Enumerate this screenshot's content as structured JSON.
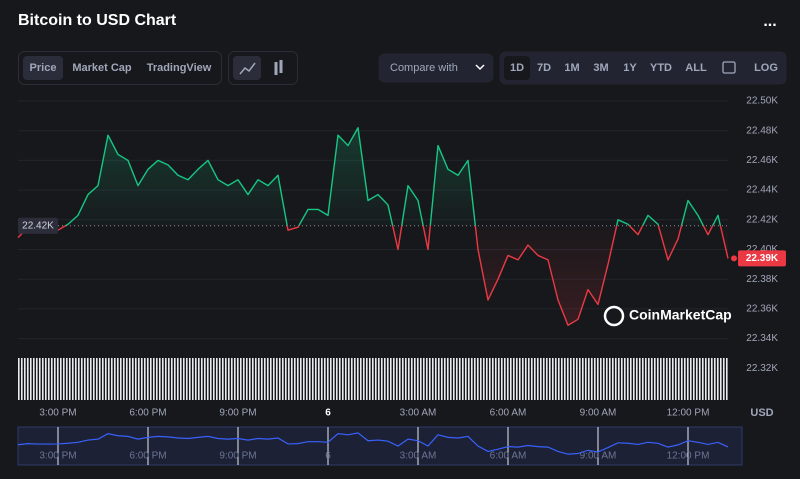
{
  "ui": {
    "title": "Bitcoin to USD Chart",
    "menu": "...",
    "tabs": [
      "Price",
      "Market Cap",
      "TradingView"
    ],
    "compare": "Compare with",
    "ranges": [
      "1D",
      "7D",
      "1M",
      "3M",
      "1Y",
      "YTD",
      "ALL"
    ],
    "log": "LOG",
    "currency": "USD",
    "watermark": "CoinMarketCap"
  },
  "chart_data": {
    "type": "line",
    "categories": [
      null,
      null,
      null,
      null,
      "3:00 PM",
      null,
      null,
      null,
      null,
      null,
      null,
      null,
      null,
      "6:00 PM",
      null,
      null,
      null,
      null,
      null,
      null,
      null,
      null,
      "9:00 PM",
      null,
      null,
      null,
      null,
      null,
      null,
      null,
      null,
      "6",
      null,
      null,
      null,
      null,
      null,
      null,
      null,
      null,
      "3:00 AM",
      null,
      null,
      null,
      null,
      null,
      null,
      null,
      null,
      "6:00 AM",
      null,
      null,
      null,
      null,
      null,
      null,
      null,
      null,
      "9:00 AM",
      null,
      null,
      null,
      null,
      null,
      null,
      null,
      null,
      "12:00 PM",
      null,
      null,
      null,
      null
    ],
    "values": [
      22.408,
      22.415,
      22.412,
      22.412,
      22.413,
      22.417,
      22.423,
      22.437,
      22.443,
      22.477,
      22.464,
      22.46,
      22.443,
      22.454,
      22.46,
      22.457,
      22.45,
      22.447,
      22.454,
      22.46,
      22.447,
      22.443,
      22.447,
      22.437,
      22.447,
      22.443,
      22.45,
      22.413,
      22.415,
      22.427,
      22.427,
      22.423,
      22.477,
      22.47,
      22.482,
      22.433,
      22.437,
      22.43,
      22.4,
      22.443,
      22.433,
      22.4,
      22.47,
      22.454,
      22.45,
      22.46,
      22.4,
      22.366,
      22.38,
      22.396,
      22.393,
      22.403,
      22.396,
      22.393,
      22.366,
      22.349,
      22.353,
      22.373,
      22.363,
      22.39,
      22.42,
      22.417,
      22.41,
      22.423,
      22.417,
      22.393,
      22.407,
      22.433,
      22.423,
      22.41,
      22.423,
      22.394
    ],
    "reference": {
      "value": 22.416,
      "label": "22.42K"
    },
    "last_label": "22.39K",
    "up_color": "#16c784",
    "down_color": "#ea3943",
    "ylim": [
      22.3,
      22.5
    ],
    "yticks": [
      {
        "value": 22.32,
        "label": "22.32K"
      },
      {
        "value": 22.34,
        "label": "22.34K"
      },
      {
        "value": 22.36,
        "label": "22.36K"
      },
      {
        "value": 22.38,
        "label": "22.38K"
      },
      {
        "value": 22.4,
        "label": "22.40K"
      },
      {
        "value": 22.42,
        "label": "22.42K"
      },
      {
        "value": 22.44,
        "label": "22.44K"
      },
      {
        "value": 22.46,
        "label": "22.46K"
      },
      {
        "value": 22.48,
        "label": "22.48K"
      },
      {
        "value": 22.5,
        "label": "22.50K"
      }
    ],
    "grid": true
  }
}
